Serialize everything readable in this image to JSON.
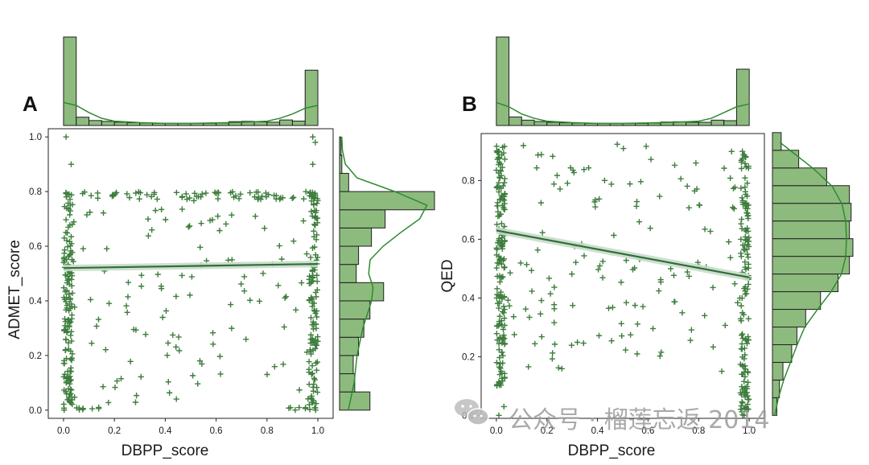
{
  "colors": {
    "marker": "#3d7d3d",
    "bar_fill": "#8dbb7e",
    "bar_edge": "#1f1f1f",
    "kde": "#2e8b2e",
    "regline": "#2f6f3a",
    "ci_band": "#c9dcc9",
    "frame": "#222222"
  },
  "watermark": "公众号 · 榴莲忘返 2014",
  "chart_data": [
    {
      "panel": "A",
      "type": "scatter",
      "xlabel": "DBPP_score",
      "ylabel": "ADMET_score",
      "xlim": [
        -0.06,
        1.06
      ],
      "ylim": [
        -0.03,
        1.03
      ],
      "xticks": [
        "0.0",
        "0.2",
        "0.4",
        "0.6",
        "0.8",
        "1.0"
      ],
      "yticks": [
        "0.0",
        "0.2",
        "0.4",
        "0.6",
        "0.8",
        "1.0"
      ],
      "regression": {
        "x": [
          0.0,
          1.0
        ],
        "y": [
          0.52,
          0.535
        ],
        "ci": 0.012
      },
      "x_hist": {
        "bins": [
          0.0,
          0.05,
          0.1,
          0.15,
          0.2,
          0.25,
          0.3,
          0.35,
          0.4,
          0.45,
          0.5,
          0.55,
          0.6,
          0.65,
          0.7,
          0.75,
          0.8,
          0.85,
          0.9,
          0.95,
          1.0
        ],
        "counts": [
          320,
          30,
          18,
          15,
          12,
          10,
          9,
          8,
          8,
          8,
          8,
          8,
          9,
          14,
          15,
          13,
          12,
          20,
          16,
          200
        ]
      },
      "y_hist": {
        "bins": [
          0.0,
          0.0667,
          0.1333,
          0.2,
          0.2667,
          0.3333,
          0.4,
          0.4667,
          0.5333,
          0.6,
          0.6667,
          0.7333,
          0.8,
          0.8667,
          0.9333,
          1.0
        ],
        "counts": [
          40,
          20,
          18,
          25,
          32,
          40,
          58,
          22,
          25,
          42,
          60,
          125,
          12,
          3,
          2
        ]
      },
      "x_kde": [
        [
          0.0,
          0.16
        ],
        [
          0.05,
          0.14
        ],
        [
          0.1,
          0.09
        ],
        [
          0.15,
          0.05
        ],
        [
          0.2,
          0.03
        ],
        [
          0.3,
          0.02
        ],
        [
          0.4,
          0.015
        ],
        [
          0.5,
          0.015
        ],
        [
          0.6,
          0.018
        ],
        [
          0.7,
          0.022
        ],
        [
          0.8,
          0.03
        ],
        [
          0.85,
          0.05
        ],
        [
          0.9,
          0.08
        ],
        [
          0.95,
          0.12
        ],
        [
          1.0,
          0.14
        ]
      ],
      "y_kde": [
        [
          0.0,
          0.06
        ],
        [
          0.1,
          0.1
        ],
        [
          0.2,
          0.12
        ],
        [
          0.3,
          0.16
        ],
        [
          0.4,
          0.22
        ],
        [
          0.45,
          0.23
        ],
        [
          0.5,
          0.2
        ],
        [
          0.55,
          0.21
        ],
        [
          0.6,
          0.3
        ],
        [
          0.65,
          0.42
        ],
        [
          0.7,
          0.55
        ],
        [
          0.75,
          0.6
        ],
        [
          0.8,
          0.38
        ],
        [
          0.85,
          0.12
        ],
        [
          0.9,
          0.04
        ],
        [
          0.95,
          0.02
        ],
        [
          1.0,
          0.015
        ]
      ],
      "points": {
        "clusters": [
          {
            "x": [
              0.0,
              0.035
            ],
            "y": [
              0.0,
              0.8
            ],
            "n": 150
          },
          {
            "x": [
              0.965,
              1.0
            ],
            "y": [
              0.0,
              0.8
            ],
            "n": 120
          },
          {
            "x": [
              0.0,
              1.0
            ],
            "y": [
              0.77,
              0.8
            ],
            "n": 70
          },
          {
            "x": [
              0.0,
              1.0
            ],
            "y": [
              0.0,
              0.8
            ],
            "n": 120
          },
          {
            "x": [
              0.0,
              0.15
            ],
            "y": [
              0.0,
              0.01
            ],
            "n": 8
          },
          {
            "x": [
              0.85,
              1.0
            ],
            "y": [
              0.0,
              0.01
            ],
            "n": 8
          }
        ],
        "fixed": [
          [
            0.01,
            1.0
          ],
          [
            0.98,
            1.0
          ],
          [
            0.99,
            0.98
          ],
          [
            0.03,
            0.9
          ],
          [
            0.98,
            0.9
          ]
        ]
      }
    },
    {
      "panel": "B",
      "type": "scatter",
      "xlabel": "DBPP_score",
      "ylabel": "QED",
      "xlim": [
        -0.06,
        1.06
      ],
      "ylim": [
        -0.01,
        0.96
      ],
      "xticks": [
        "0.0",
        "0.2",
        "0.4",
        "0.6",
        "0.8",
        "1.0"
      ],
      "yticks": [
        "0.0",
        "0.2",
        "0.4",
        "0.6",
        "0.8"
      ],
      "regression": {
        "x": [
          0.0,
          1.0
        ],
        "y": [
          0.63,
          0.47
        ],
        "ci": 0.012
      },
      "x_hist": {
        "bins": [
          0.0,
          0.05,
          0.1,
          0.15,
          0.2,
          0.25,
          0.3,
          0.35,
          0.4,
          0.45,
          0.5,
          0.55,
          0.6,
          0.65,
          0.7,
          0.75,
          0.8,
          0.85,
          0.9,
          0.95,
          1.0
        ],
        "counts": [
          330,
          32,
          20,
          15,
          12,
          10,
          9,
          8,
          8,
          8,
          8,
          8,
          9,
          13,
          14,
          12,
          12,
          20,
          18,
          210
        ]
      },
      "y_hist": {
        "bins": [
          0.0,
          0.0602,
          0.1204,
          0.1806,
          0.2408,
          0.301,
          0.3612,
          0.4214,
          0.4816,
          0.5418,
          0.602,
          0.6622,
          0.7224,
          0.7826,
          0.8428,
          0.903,
          0.9632
        ],
        "counts": [
          5,
          8,
          12,
          22,
          28,
          38,
          55,
          75,
          88,
          92,
          88,
          90,
          88,
          62,
          30,
          10
        ]
      },
      "x_kde": [
        [
          0.0,
          0.16
        ],
        [
          0.05,
          0.13
        ],
        [
          0.1,
          0.08
        ],
        [
          0.15,
          0.05
        ],
        [
          0.2,
          0.03
        ],
        [
          0.3,
          0.02
        ],
        [
          0.4,
          0.015
        ],
        [
          0.5,
          0.015
        ],
        [
          0.6,
          0.018
        ],
        [
          0.7,
          0.022
        ],
        [
          0.8,
          0.03
        ],
        [
          0.85,
          0.05
        ],
        [
          0.9,
          0.09
        ],
        [
          0.95,
          0.13
        ],
        [
          1.0,
          0.15
        ]
      ],
      "y_kde": [
        [
          0.0,
          0.03
        ],
        [
          0.06,
          0.08
        ],
        [
          0.12,
          0.15
        ],
        [
          0.18,
          0.24
        ],
        [
          0.24,
          0.33
        ],
        [
          0.3,
          0.43
        ],
        [
          0.36,
          0.6
        ],
        [
          0.42,
          0.78
        ],
        [
          0.48,
          0.92
        ],
        [
          0.54,
          0.98
        ],
        [
          0.6,
          0.99
        ],
        [
          0.66,
          0.98
        ],
        [
          0.72,
          0.93
        ],
        [
          0.78,
          0.8
        ],
        [
          0.84,
          0.55
        ],
        [
          0.9,
          0.25
        ],
        [
          0.93,
          0.1
        ]
      ],
      "points": {
        "clusters": [
          {
            "x": [
              0.0,
              0.035
            ],
            "y": [
              0.1,
              0.93
            ],
            "n": 170
          },
          {
            "x": [
              0.965,
              1.0
            ],
            "y": [
              0.0,
              0.9
            ],
            "n": 140
          },
          {
            "x": [
              0.0,
              1.0
            ],
            "y": [
              0.15,
              0.93
            ],
            "n": 150
          }
        ],
        "fixed": [
          [
            0.01,
            0.0
          ],
          [
            0.03,
            0.03
          ],
          [
            0.99,
            0.02
          ],
          [
            0.98,
            0.0
          ]
        ]
      }
    }
  ]
}
